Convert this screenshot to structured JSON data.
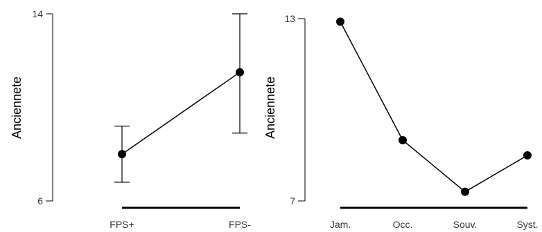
{
  "chart_data": [
    {
      "type": "line",
      "ylabel": "Anciennete",
      "ylim": [
        6,
        14
      ],
      "y_ticks": [
        6,
        14
      ],
      "categories": [
        "FPS+",
        "FPS-"
      ],
      "values": [
        8.0,
        11.5
      ],
      "error_low": [
        6.8,
        8.9
      ],
      "error_high": [
        9.2,
        14.0
      ],
      "grid": false
    },
    {
      "type": "line",
      "ylabel": "Anciennete",
      "ylim": [
        7,
        13
      ],
      "y_ticks": [
        7,
        13
      ],
      "categories": [
        "Jam.",
        "Occ.",
        "Souv.",
        "Syst."
      ],
      "values": [
        12.9,
        9.0,
        7.3,
        8.5
      ],
      "grid": false
    }
  ]
}
